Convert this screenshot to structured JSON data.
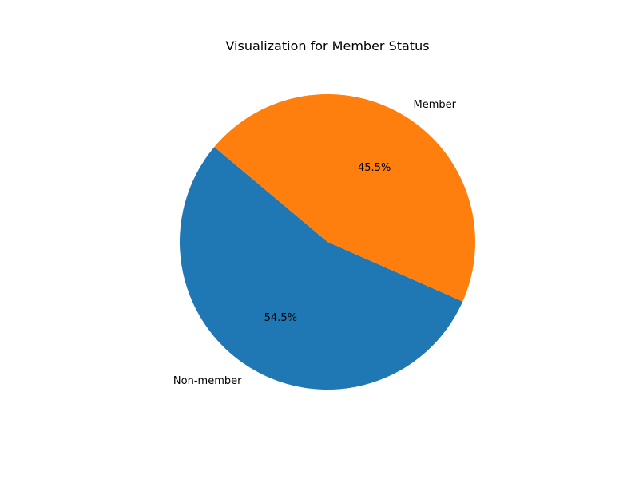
{
  "chart_data": {
    "type": "pie",
    "title": "Visualization for Member Status",
    "start_angle_deg": 140,
    "direction": "counterclockwise",
    "slices": [
      {
        "label": "Non-member",
        "value": 54.5,
        "pct_label": "54.5%",
        "color": "#1f77b4"
      },
      {
        "label": "Member",
        "value": 45.5,
        "pct_label": "45.5%",
        "color": "#ff7f0e"
      }
    ]
  }
}
